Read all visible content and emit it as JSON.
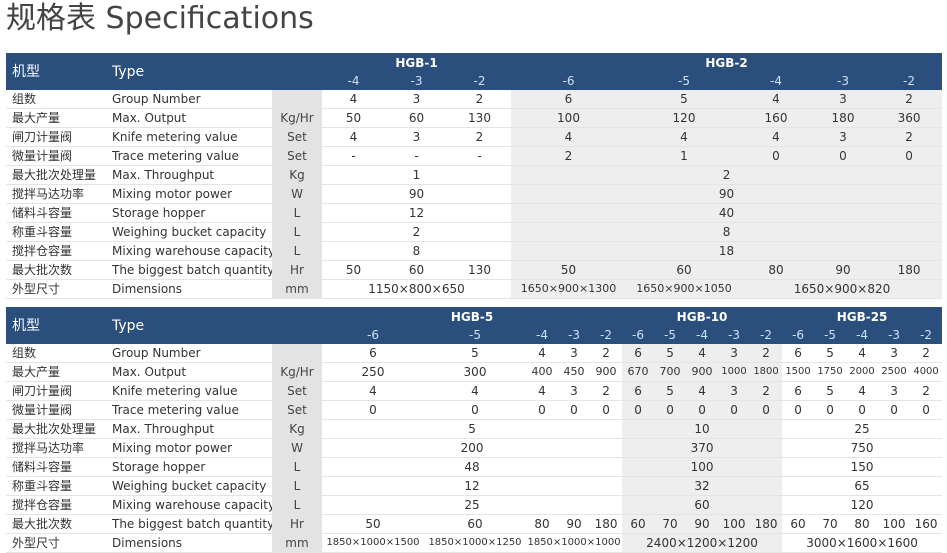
{
  "title": "规格表 Specifications",
  "row_labels": [
    {
      "cn": "组数",
      "en": "Group Number",
      "unit": ""
    },
    {
      "cn": "最大产量",
      "en": "Max. Output",
      "unit": "Kg/Hr"
    },
    {
      "cn": "闸刀计量阀",
      "en": "Knife metering value",
      "unit": "Set"
    },
    {
      "cn": "微量计量阀",
      "en": "Trace metering value",
      "unit": "Set"
    },
    {
      "cn": "最大批次处理量",
      "en": "Max. Throughput",
      "unit": "Kg"
    },
    {
      "cn": "搅拌马达功率",
      "en": "Mixing motor power",
      "unit": "W"
    },
    {
      "cn": "储料斗容量",
      "en": "Storage hopper",
      "unit": "L"
    },
    {
      "cn": "称重斗容量",
      "en": "Weighing bucket capacity",
      "unit": "L"
    },
    {
      "cn": "搅拌仓容量",
      "en": "Mixing warehouse capacity",
      "unit": "L"
    },
    {
      "cn": "最大批次数",
      "en": "The biggest batch quantity",
      "unit": "Hr"
    },
    {
      "cn": "外型尺寸",
      "en": "Dimensions",
      "unit": "mm"
    }
  ],
  "table1": {
    "header_cn": "机型",
    "header_en": "Type",
    "models": [
      "HGB-1",
      "HGB-2"
    ],
    "variants": [
      "-4",
      "-3",
      "-2",
      "-6",
      "-5",
      "-4",
      "-3",
      "-2"
    ],
    "group_number": [
      "4",
      "3",
      "2",
      "6",
      "5",
      "4",
      "3",
      "2"
    ],
    "max_output": [
      "50",
      "60",
      "130",
      "100",
      "120",
      "160",
      "180",
      "360"
    ],
    "knife": [
      "4",
      "3",
      "2",
      "4",
      "4",
      "4",
      "3",
      "2"
    ],
    "trace": [
      "-",
      "-",
      "-",
      "2",
      "1",
      "0",
      "0",
      "0"
    ],
    "max_throughput": [
      "1",
      "2"
    ],
    "motor_power": [
      "90",
      "90"
    ],
    "storage_hopper": [
      "12",
      "40"
    ],
    "weighing_bucket": [
      "2",
      "8"
    ],
    "mixing_warehouse": [
      "8",
      "18"
    ],
    "batch_qty": [
      "50",
      "60",
      "130",
      "50",
      "60",
      "80",
      "90",
      "180"
    ],
    "dimensions": [
      "1150×800×650",
      "1650×900×1300",
      "1650×900×1050",
      "1650×900×820"
    ]
  },
  "table2": {
    "header_cn": "机型",
    "header_en": "Type",
    "models": [
      "HGB-5",
      "HGB-10",
      "HGB-25"
    ],
    "variants": [
      "-6",
      "-5",
      "-4",
      "-3",
      "-2",
      "-6",
      "-5",
      "-4",
      "-3",
      "-2",
      "-6",
      "-5",
      "-4",
      "-3",
      "-2"
    ],
    "group_number": [
      "6",
      "5",
      "4",
      "3",
      "2",
      "6",
      "5",
      "4",
      "3",
      "2",
      "6",
      "5",
      "4",
      "3",
      "2"
    ],
    "max_output": [
      "250",
      "300",
      "400",
      "450",
      "900",
      "670",
      "700",
      "900",
      "1000",
      "1800",
      "1500",
      "1750",
      "2000",
      "2500",
      "4000"
    ],
    "knife": [
      "4",
      "4",
      "4",
      "3",
      "2",
      "6",
      "5",
      "4",
      "3",
      "2",
      "6",
      "5",
      "4",
      "3",
      "2"
    ],
    "trace": [
      "0",
      "0",
      "0",
      "0",
      "0",
      "0",
      "0",
      "0",
      "0",
      "0",
      "0",
      "0",
      "0",
      "0",
      "0"
    ],
    "max_throughput": [
      "5",
      "10",
      "25"
    ],
    "motor_power": [
      "200",
      "370",
      "750"
    ],
    "storage_hopper": [
      "48",
      "100",
      "150"
    ],
    "weighing_bucket": [
      "12",
      "32",
      "65"
    ],
    "mixing_warehouse": [
      "25",
      "60",
      "120"
    ],
    "batch_qty": [
      "50",
      "60",
      "80",
      "90",
      "180",
      "60",
      "70",
      "90",
      "100",
      "180",
      "60",
      "70",
      "80",
      "100",
      "160"
    ],
    "dimensions": [
      "1850×1000×1500",
      "1850×1000×1250",
      "1850×1000×1000",
      "2400×1200×1200",
      "3000×1600×1600"
    ]
  },
  "colors": {
    "header_bg": "#2a4f7c",
    "header_text": "#ffffff",
    "unit_bg": "#e3e3e3",
    "alt_bg": "#eeeeee"
  }
}
